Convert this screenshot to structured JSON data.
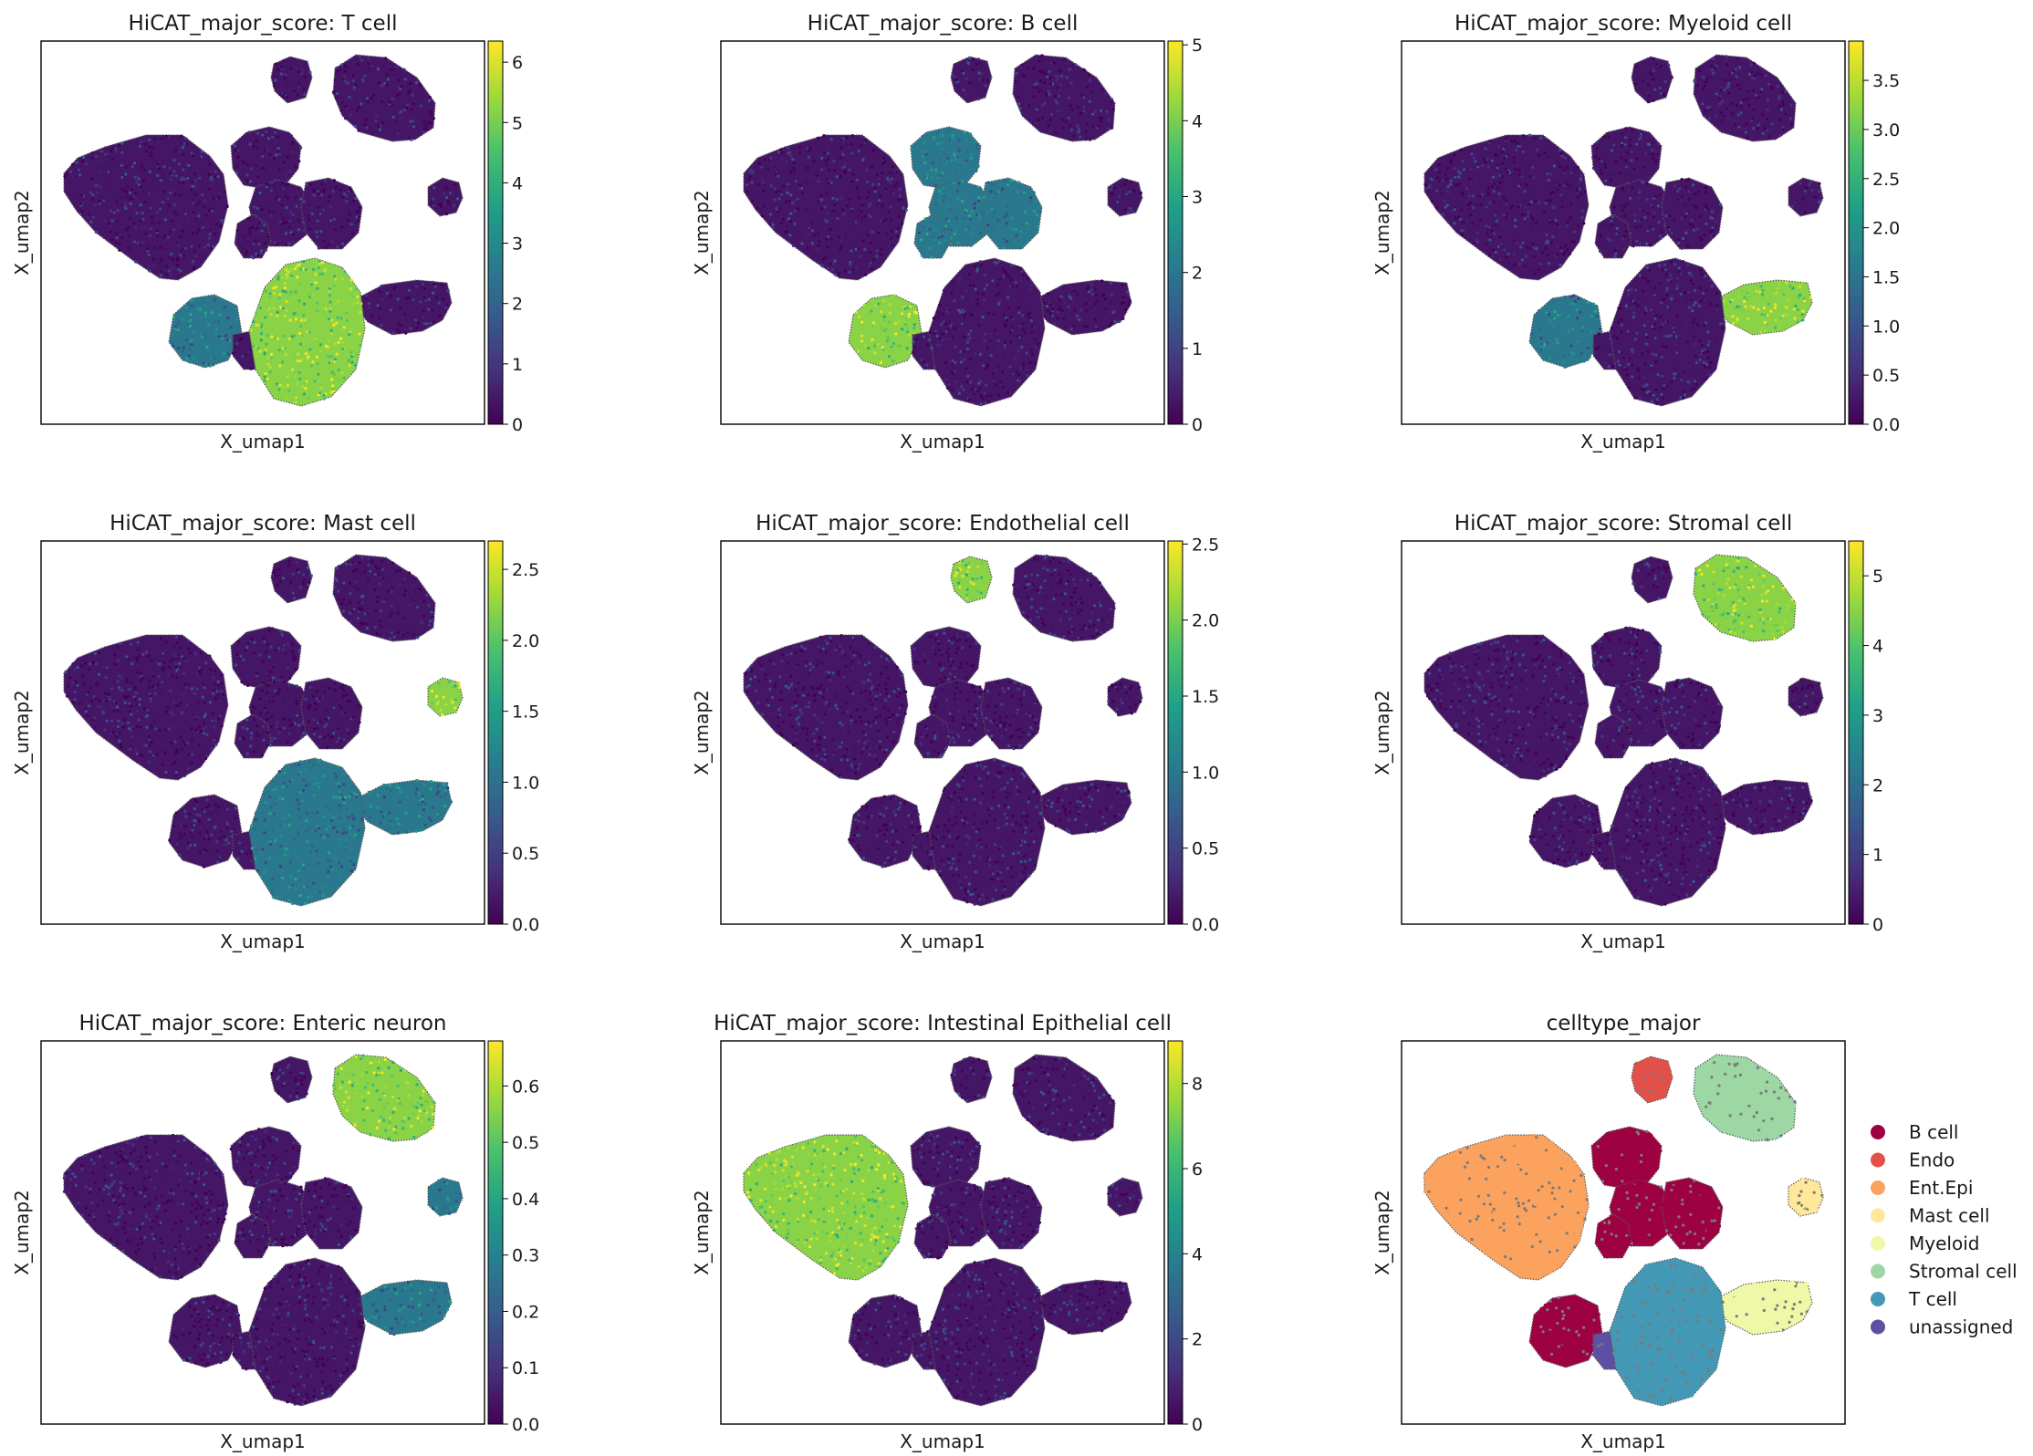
{
  "figure": {
    "colormap": "viridis",
    "colormap_stops": [
      "#440154",
      "#46327e",
      "#365c8d",
      "#277f8e",
      "#1fa187",
      "#4ac16d",
      "#a0da39",
      "#fde725"
    ]
  },
  "chart_data": [
    {
      "type": "scatter",
      "title": "HiCAT_major_score: T cell",
      "xlabel": "X_umap1",
      "ylabel": "X_umap2",
      "colorbar": {
        "min": 0,
        "max": 6.35,
        "ticks": [
          "0",
          "1",
          "2",
          "3",
          "4",
          "5",
          "6"
        ],
        "tick_values": [
          0,
          1,
          2,
          3,
          4,
          5,
          6
        ]
      },
      "high_clusters": [
        "tcell"
      ],
      "mid_clusters": [
        "lower_left"
      ]
    },
    {
      "type": "scatter",
      "title": "HiCAT_major_score: B cell",
      "xlabel": "X_umap1",
      "ylabel": "X_umap2",
      "colorbar": {
        "min": 0,
        "max": 5.05,
        "ticks": [
          "0",
          "1",
          "2",
          "3",
          "4",
          "5"
        ],
        "tick_values": [
          0,
          1,
          2,
          3,
          4,
          5
        ]
      },
      "high_clusters": [
        "lower_left"
      ],
      "mid_clusters": [
        "bcell_upper",
        "bcell_blob_a",
        "bcell_blob_b",
        "bcell_blob_c"
      ]
    },
    {
      "type": "scatter",
      "title": "HiCAT_major_score: Myeloid cell",
      "xlabel": "X_umap1",
      "ylabel": "X_umap2",
      "colorbar": {
        "min": 0,
        "max": 3.9,
        "ticks": [
          "0.0",
          "0.5",
          "1.0",
          "1.5",
          "2.0",
          "2.5",
          "3.0",
          "3.5"
        ],
        "tick_values": [
          0,
          0.5,
          1,
          1.5,
          2,
          2.5,
          3,
          3.5
        ]
      },
      "high_clusters": [
        "myeloid"
      ],
      "mid_clusters": [
        "lower_left"
      ]
    },
    {
      "type": "scatter",
      "title": "HiCAT_major_score: Mast cell",
      "xlabel": "X_umap1",
      "ylabel": "X_umap2",
      "colorbar": {
        "min": 0,
        "max": 2.7,
        "ticks": [
          "0.0",
          "0.5",
          "1.0",
          "1.5",
          "2.0",
          "2.5"
        ],
        "tick_values": [
          0,
          0.5,
          1,
          1.5,
          2,
          2.5
        ]
      },
      "high_clusters": [
        "mast"
      ],
      "mid_clusters": [
        "myeloid",
        "tcell"
      ]
    },
    {
      "type": "scatter",
      "title": "HiCAT_major_score: Endothelial cell",
      "xlabel": "X_umap1",
      "ylabel": "X_umap2",
      "colorbar": {
        "min": 0,
        "max": 2.52,
        "ticks": [
          "0.0",
          "0.5",
          "1.0",
          "1.5",
          "2.0",
          "2.5"
        ],
        "tick_values": [
          0,
          0.5,
          1,
          1.5,
          2,
          2.5
        ]
      },
      "high_clusters": [
        "endo"
      ],
      "mid_clusters": []
    },
    {
      "type": "scatter",
      "title": "HiCAT_major_score: Stromal cell",
      "xlabel": "X_umap1",
      "ylabel": "X_umap2",
      "colorbar": {
        "min": 0,
        "max": 5.5,
        "ticks": [
          "0",
          "1",
          "2",
          "3",
          "4",
          "5"
        ],
        "tick_values": [
          0,
          1,
          2,
          3,
          4,
          5
        ]
      },
      "high_clusters": [
        "stromal"
      ],
      "mid_clusters": []
    },
    {
      "type": "scatter",
      "title": "HiCAT_major_score: Enteric neuron",
      "xlabel": "X_umap1",
      "ylabel": "X_umap2",
      "colorbar": {
        "min": 0,
        "max": 0.68,
        "ticks": [
          "0.0",
          "0.1",
          "0.2",
          "0.3",
          "0.4",
          "0.5",
          "0.6"
        ],
        "tick_values": [
          0,
          0.1,
          0.2,
          0.3,
          0.4,
          0.5,
          0.6
        ]
      },
      "high_clusters": [
        "stromal"
      ],
      "mid_clusters": [
        "mast",
        "myeloid"
      ]
    },
    {
      "type": "scatter",
      "title": "HiCAT_major_score: Intestinal Epithelial cell",
      "xlabel": "X_umap1",
      "ylabel": "X_umap2",
      "colorbar": {
        "min": 0,
        "max": 9,
        "ticks": [
          "0",
          "2",
          "4",
          "6",
          "8"
        ],
        "tick_values": [
          0,
          2,
          4,
          6,
          8
        ]
      },
      "high_clusters": [
        "epi"
      ],
      "mid_clusters": []
    },
    {
      "type": "scatter",
      "title": "celltype_major",
      "xlabel": "X_umap1",
      "ylabel": "X_umap2",
      "legend": {
        "placement": "right",
        "entries": [
          {
            "label": "B cell",
            "color": "#9e0142"
          },
          {
            "label": "Endo",
            "color": "#e1514a"
          },
          {
            "label": "Ent.Epi",
            "color": "#fba35e"
          },
          {
            "label": "Mast cell",
            "color": "#fee899"
          },
          {
            "label": "Myeloid",
            "color": "#eef8a6"
          },
          {
            "label": "Stromal cell",
            "color": "#9cd7a4"
          },
          {
            "label": "T cell",
            "color": "#4399b5"
          },
          {
            "label": "unassigned",
            "color": "#5e4fa2"
          }
        ]
      },
      "cluster_types": {
        "epi": "Ent.Epi",
        "endo": "Endo",
        "stromal": "Stromal cell",
        "mast": "Mast cell",
        "myeloid": "Myeloid",
        "tcell": "T cell",
        "lower_left": "B cell",
        "bcell_upper": "B cell",
        "bcell_blob_a": "B cell",
        "bcell_blob_b": "B cell",
        "bcell_blob_c": "B cell",
        "bridge": "unassigned"
      }
    }
  ]
}
